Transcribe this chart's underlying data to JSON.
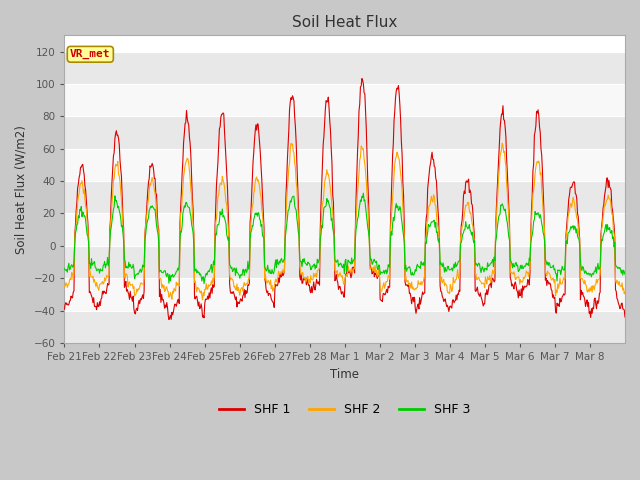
{
  "title": "Soil Heat Flux",
  "ylabel": "Soil Heat Flux (W/m2)",
  "xlabel": "Time",
  "ylim": [
    -60,
    130
  ],
  "yticks": [
    -60,
    -40,
    -20,
    0,
    20,
    40,
    60,
    80,
    100,
    120
  ],
  "fig_bg": "#c8c8c8",
  "axes_bg": "#ffffff",
  "band_colors": [
    "#e8e8e8",
    "#f8f8f8"
  ],
  "shf1_color": "#dd0000",
  "shf2_color": "#ffa500",
  "shf3_color": "#00cc00",
  "legend_label1": "SHF 1",
  "legend_label2": "SHF 2",
  "legend_label3": "SHF 3",
  "annotation_text": "VR_met",
  "annotation_color": "#cc0000",
  "annotation_bg": "#ffff99",
  "annotation_border": "#aa8800",
  "x_labels": [
    "Feb 21",
    "Feb 22",
    "Feb 23",
    "Feb 24",
    "Feb 25",
    "Feb 26",
    "Feb 27",
    "Feb 28",
    "Mar 1",
    "Mar 2",
    "Mar 3",
    "Mar 4",
    "Mar 5",
    "Mar 6",
    "Mar 7",
    "Mar 8"
  ],
  "n_days": 16,
  "seed": 42,
  "day_peaks_shf1": [
    50,
    70,
    50,
    80,
    82,
    75,
    95,
    90,
    103,
    98,
    55,
    40,
    83,
    83,
    40,
    40
  ],
  "day_troughs_shf1": [
    -40,
    -35,
    -42,
    -44,
    -36,
    -35,
    -25,
    -30,
    -20,
    -35,
    -40,
    -38,
    -30,
    -30,
    -40,
    -42
  ],
  "day_peaks_shf2": [
    38,
    50,
    40,
    55,
    42,
    42,
    62,
    45,
    60,
    58,
    30,
    25,
    62,
    52,
    28,
    30
  ],
  "day_troughs_shf2": [
    -25,
    -25,
    -30,
    -32,
    -28,
    -28,
    -22,
    -22,
    -18,
    -28,
    -28,
    -25,
    -22,
    -22,
    -28,
    -28
  ],
  "day_peaks_shf3": [
    22,
    27,
    25,
    26,
    20,
    20,
    30,
    28,
    30,
    25,
    15,
    12,
    26,
    20,
    12,
    12
  ],
  "day_troughs_shf3": [
    -15,
    -15,
    -20,
    -20,
    -18,
    -18,
    -12,
    -14,
    -12,
    -18,
    -15,
    -15,
    -14,
    -14,
    -18,
    -18
  ]
}
